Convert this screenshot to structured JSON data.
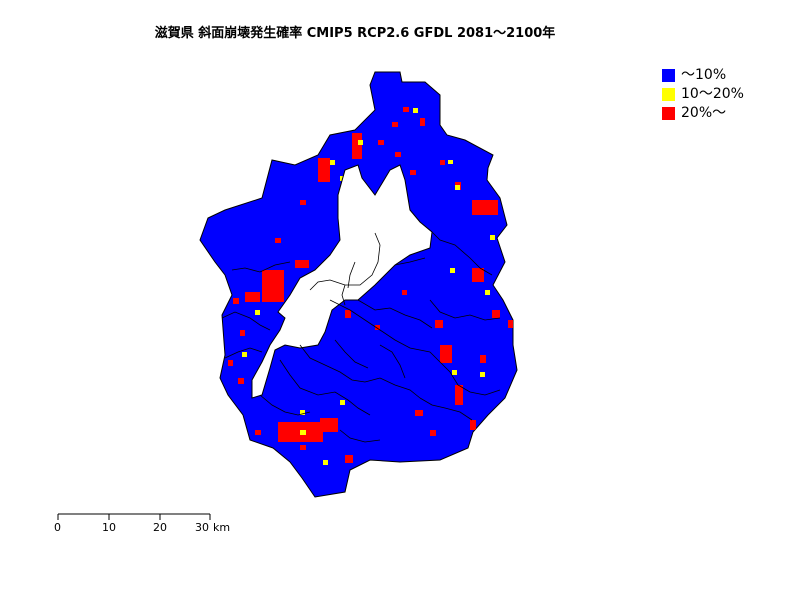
{
  "title": "滋賀県 斜面崩壊発生確率 CMIP5 RCP2.6 GFDL 2081～2100年",
  "legend": [
    {
      "label": "～10%",
      "color": "#0000ff"
    },
    {
      "label": "10～20%",
      "color": "#ffff00"
    },
    {
      "label": "20%～",
      "color": "#ff0000"
    }
  ],
  "scale": {
    "ticks": [
      "0",
      "10",
      "20",
      "30"
    ],
    "unit": "km"
  },
  "colors": {
    "low": "#0000ff",
    "mid": "#ffff00",
    "high": "#ff0000",
    "lake": "#ffffff",
    "border": "#000000"
  }
}
